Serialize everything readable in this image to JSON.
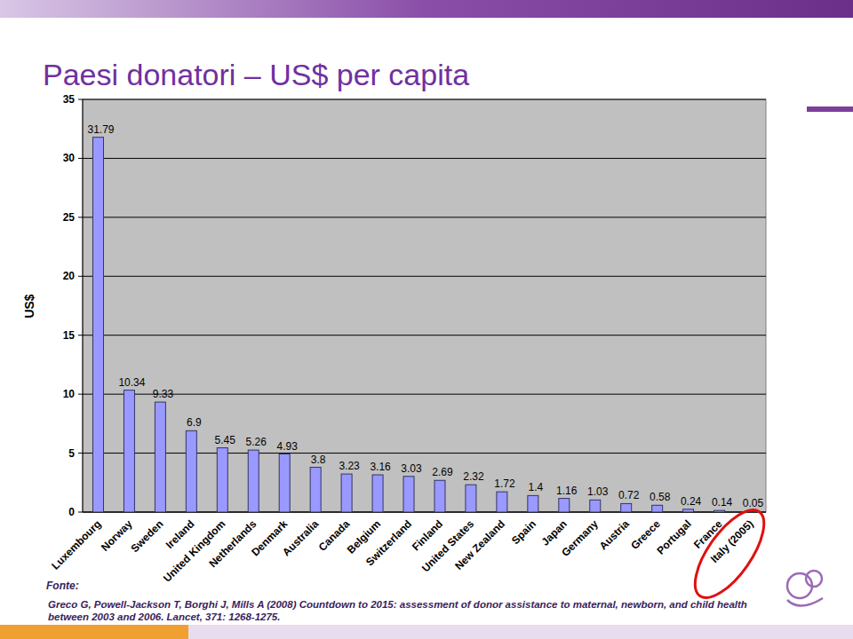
{
  "chart_data": {
    "type": "bar",
    "title": "Paesi donatori – US$ per capita",
    "y_label": "US$",
    "categories": [
      "Luxembourg",
      "Norway",
      "Sweden",
      "Ireland",
      "United Kingdom",
      "Netherlands",
      "Denmark",
      "Australia",
      "Canada",
      "Belgium",
      "Switzerland",
      "Finland",
      "United States",
      "New Zealand",
      "Spain",
      "Japan",
      "Germany",
      "Austria",
      "Greece",
      "Portugal",
      "France",
      "Italy (2005)"
    ],
    "values": [
      31.79,
      10.34,
      9.33,
      6.9,
      5.45,
      5.26,
      4.93,
      3.8,
      3.23,
      3.16,
      3.03,
      2.69,
      2.32,
      1.72,
      1.4,
      1.16,
      1.03,
      0.72,
      0.58,
      0.24,
      0.14,
      0.05
    ],
    "color": "#9999ff",
    "ylim": [
      0,
      35
    ],
    "yticks": [
      0,
      5,
      10,
      15,
      20,
      25,
      30,
      35
    ],
    "grid": true,
    "data_labels": true,
    "source_label": "Fonte:",
    "source": "Greco G, Powell-Jackson T, Borghi J, Mills A (2008) Countdown to 2015: assessment of donor assistance to maternal, newborn, and child health between 2003 and 2006. Lancet, 371: 1268-1275."
  }
}
